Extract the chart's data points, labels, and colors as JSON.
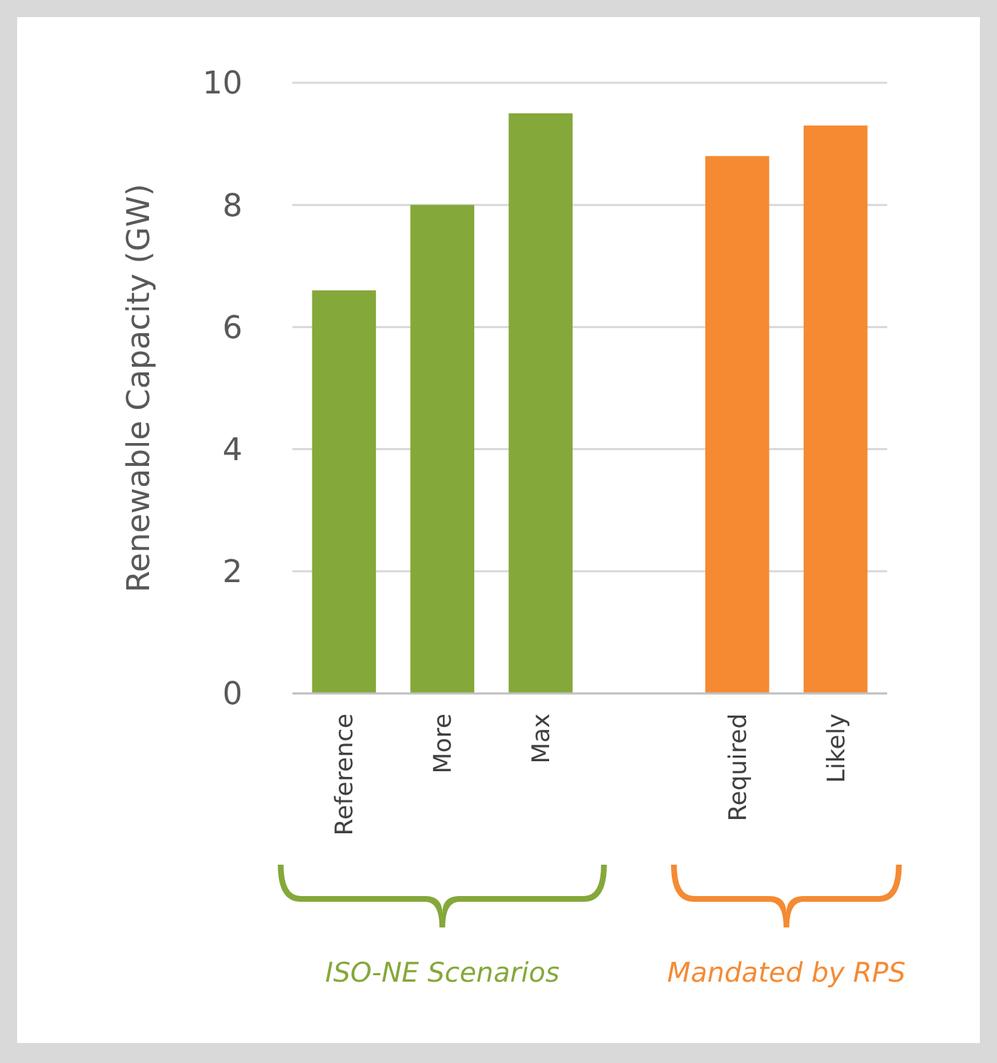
{
  "chart_data": {
    "type": "bar",
    "ylabel": "Renewable Capacity (GW)",
    "categories": [
      "Reference",
      "More",
      "Max",
      null,
      "Required",
      "Likely"
    ],
    "values": [
      6.6,
      8.0,
      9.5,
      null,
      8.8,
      9.3
    ],
    "colors": [
      "#84a83a",
      "#84a83a",
      "#84a83a",
      null,
      "#f58a33",
      "#f58a33"
    ],
    "ylim": [
      0,
      10
    ],
    "yticks": [
      0,
      2,
      4,
      6,
      8,
      10
    ],
    "grid": "y",
    "annotations": [
      "ISO-NE Scenarios",
      "Mandated by RPS"
    ]
  }
}
